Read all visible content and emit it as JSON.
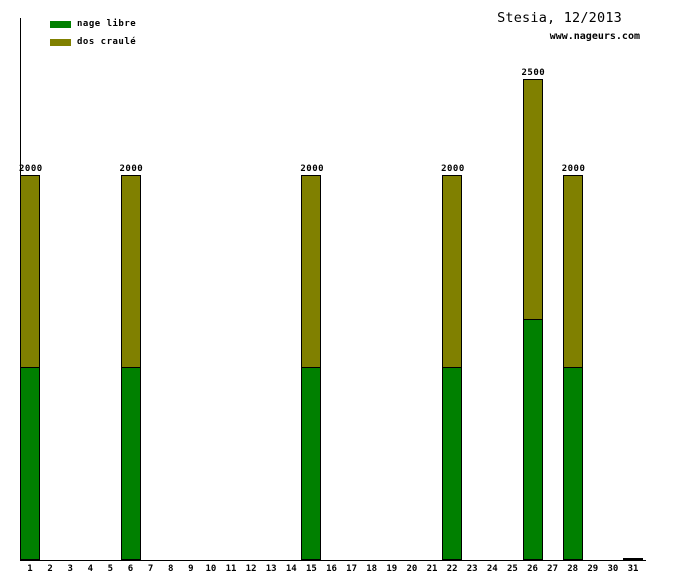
{
  "title": "Stesia, 12/2013",
  "subtitle": "www.nageurs.com",
  "legend": [
    {
      "label": "nage libre",
      "color": "#008000"
    },
    {
      "label": "dos craulé",
      "color": "#808000"
    }
  ],
  "colors": {
    "nage_libre": "#008000",
    "dos_craule": "#808000",
    "axis": "#000000",
    "text": "#000000",
    "background": "#ffffff"
  },
  "chart_data": {
    "type": "bar",
    "stacked": true,
    "title": "Stesia, 12/2013",
    "subtitle": "www.nageurs.com",
    "xlabel": "",
    "ylabel": "",
    "ylim": [
      0,
      2815
    ],
    "grid": false,
    "legend_position": "top-left",
    "categories": [
      1,
      2,
      3,
      4,
      5,
      6,
      7,
      8,
      9,
      10,
      11,
      12,
      13,
      14,
      15,
      16,
      17,
      18,
      19,
      20,
      21,
      22,
      23,
      24,
      25,
      26,
      27,
      28,
      29,
      30,
      31
    ],
    "series": [
      {
        "name": "nage libre",
        "color": "#008000",
        "values": [
          1000,
          0,
          0,
          0,
          0,
          1000,
          0,
          0,
          0,
          0,
          0,
          0,
          0,
          0,
          1000,
          0,
          0,
          0,
          0,
          0,
          0,
          1000,
          0,
          0,
          0,
          1250,
          0,
          1000,
          0,
          0,
          10
        ]
      },
      {
        "name": "dos craulé",
        "color": "#808000",
        "values": [
          1000,
          0,
          0,
          0,
          0,
          1000,
          0,
          0,
          0,
          0,
          0,
          0,
          0,
          0,
          1000,
          0,
          0,
          0,
          0,
          0,
          0,
          1000,
          0,
          0,
          0,
          1250,
          0,
          1000,
          0,
          0,
          0
        ]
      }
    ],
    "value_labels": [
      "2000",
      "",
      "",
      "",
      "",
      "2000",
      "",
      "",
      "",
      "",
      "",
      "",
      "",
      "",
      "2000",
      "",
      "",
      "",
      "",
      "",
      "",
      "2000",
      "",
      "",
      "",
      "2500",
      "",
      "2000",
      "",
      "",
      ""
    ]
  }
}
